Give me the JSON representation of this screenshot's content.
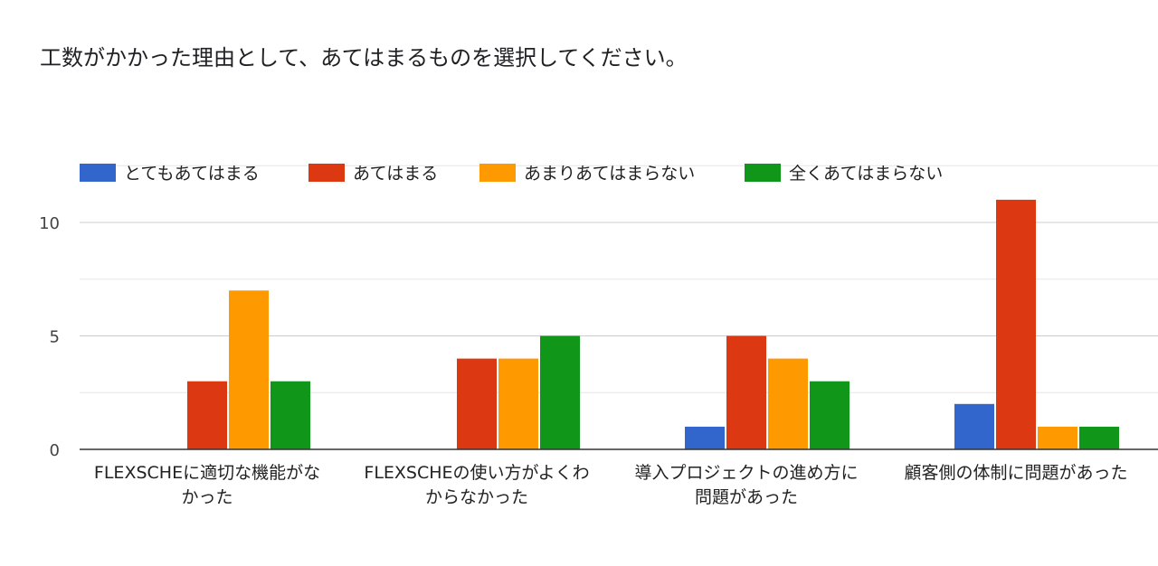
{
  "title": "工数がかかった理由として、あてはまるものを選択してください。",
  "chart_data": {
    "type": "bar",
    "categories": [
      [
        "FLEXSCHEに適切な機能がな",
        "かった"
      ],
      [
        "FLEXSCHEの使い方がよくわ",
        "からなかった"
      ],
      [
        "導入プロジェクトの進め方に",
        "問題があった"
      ],
      [
        "顧客側の体制に問題があった"
      ]
    ],
    "series": [
      {
        "name": "とてもあてはまる",
        "color": "#3366cc",
        "values": [
          0,
          0,
          1,
          2
        ]
      },
      {
        "name": "あてはまる",
        "color": "#dc3912",
        "values": [
          3,
          4,
          5,
          11
        ]
      },
      {
        "name": "あまりあてはまらない",
        "color": "#ff9900",
        "values": [
          7,
          4,
          4,
          1
        ]
      },
      {
        "name": "全くあてはまらない",
        "color": "#109618",
        "values": [
          3,
          5,
          3,
          1
        ]
      }
    ],
    "yticks": [
      0,
      5,
      10
    ],
    "ylim": [
      0,
      12.5
    ],
    "grid": true,
    "legend_position": "top"
  }
}
